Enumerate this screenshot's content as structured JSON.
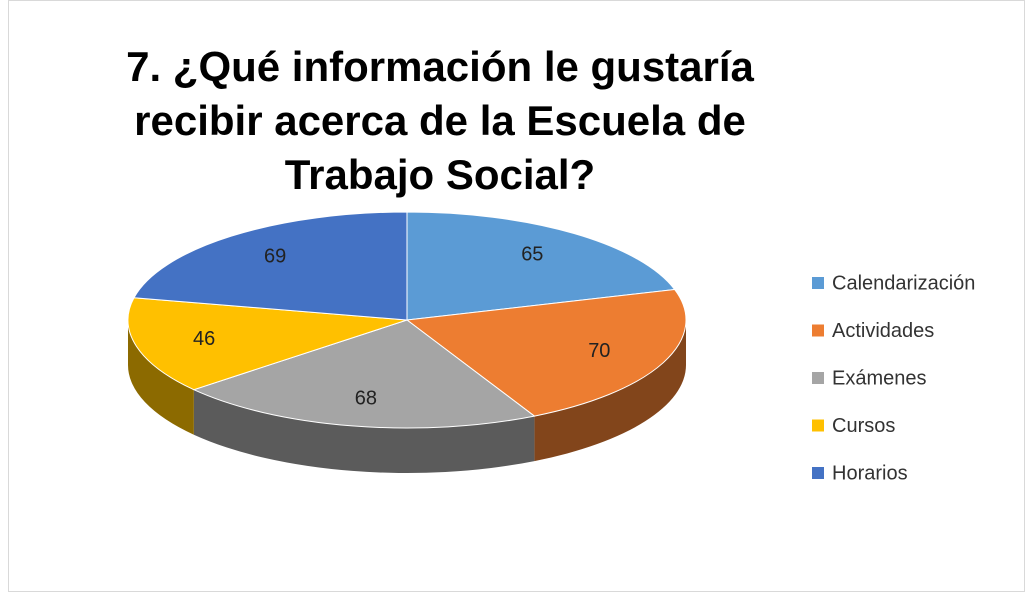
{
  "chart_data": {
    "type": "pie",
    "title": "7. ¿Qué información le gustaría recibir acerca de la Escuela de Trabajo Social?",
    "categories": [
      "Calendarización",
      "Actividades",
      "Exámenes",
      "Cursos",
      "Horarios"
    ],
    "values": [
      65,
      70,
      68,
      46,
      69
    ],
    "colors": [
      "#5b9bd5",
      "#ed7d31",
      "#a5a5a5",
      "#ffc000",
      "#4472c4"
    ],
    "legend": "right"
  }
}
